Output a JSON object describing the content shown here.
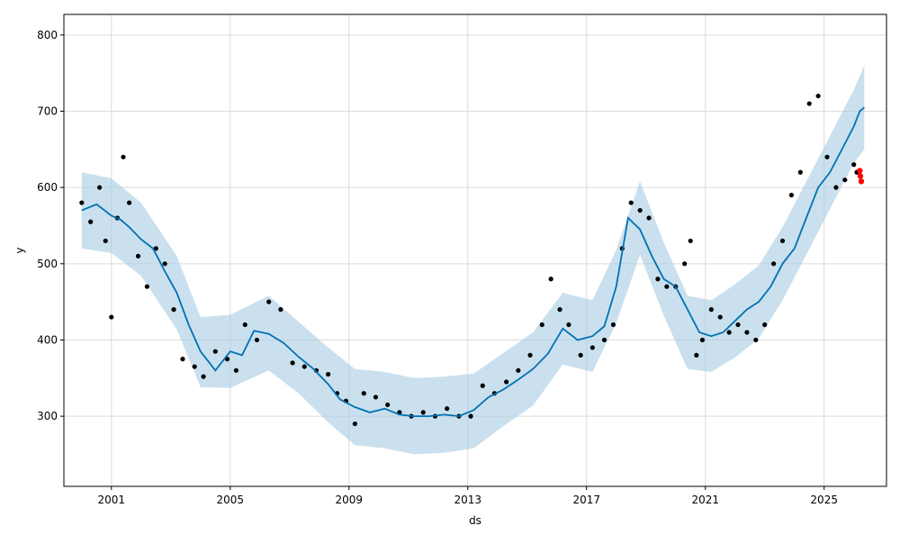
{
  "chart_data": {
    "type": "line",
    "title": "",
    "xlabel": "ds",
    "ylabel": "y",
    "xlim": [
      1999.4,
      2027.1
    ],
    "ylim": [
      208,
      827
    ],
    "x_ticks": [
      2001,
      2005,
      2009,
      2013,
      2017,
      2021,
      2025
    ],
    "x_tick_labels": [
      "2001",
      "2005",
      "2009",
      "2013",
      "2017",
      "2021",
      "2025"
    ],
    "y_ticks": [
      300,
      400,
      500,
      600,
      700,
      800
    ],
    "y_tick_labels": [
      "300",
      "400",
      "500",
      "600",
      "700",
      "800"
    ],
    "grid": true,
    "legend": "none",
    "colors": {
      "observed": "#000000",
      "forecast_line": "#0072B2",
      "uncertainty_band": "#a6cce3",
      "highlight_points": "#ff0000"
    },
    "series": [
      {
        "role": "forecast-yhat",
        "x": [
          2000.0,
          2000.5,
          2001.0,
          2001.3,
          2001.6,
          2002.0,
          2002.4,
          2002.8,
          2003.2,
          2003.6,
          2004.0,
          2004.5,
          2005.0,
          2005.4,
          2005.8,
          2006.3,
          2006.8,
          2007.3,
          2007.8,
          2008.3,
          2008.7,
          2009.2,
          2009.7,
          2010.2,
          2010.7,
          2011.2,
          2011.7,
          2012.2,
          2012.7,
          2013.2,
          2013.7,
          2014.2,
          2014.7,
          2015.2,
          2015.7,
          2016.2,
          2016.7,
          2017.2,
          2017.6,
          2018.0,
          2018.4,
          2018.8,
          2019.2,
          2019.6,
          2020.0,
          2020.4,
          2020.8,
          2021.2,
          2021.6,
          2022.0,
          2022.4,
          2022.8,
          2023.2,
          2023.6,
          2024.0,
          2024.4,
          2024.8,
          2025.2,
          2025.6,
          2026.0,
          2026.2,
          2026.35
        ],
        "y": [
          570,
          578,
          563,
          558,
          548,
          532,
          520,
          490,
          462,
          420,
          385,
          360,
          385,
          380,
          412,
          408,
          396,
          378,
          362,
          342,
          322,
          312,
          305,
          310,
          302,
          300,
          300,
          302,
          300,
          308,
          325,
          335,
          348,
          362,
          382,
          415,
          400,
          405,
          418,
          470,
          560,
          545,
          510,
          480,
          470,
          440,
          410,
          405,
          410,
          425,
          440,
          450,
          470,
          500,
          520,
          560,
          600,
          620,
          650,
          680,
          700,
          705
        ]
      },
      {
        "role": "uncertainty-upper",
        "x": [
          2000.0,
          2001.0,
          2002.0,
          2003.2,
          2004.0,
          2005.0,
          2006.3,
          2007.3,
          2008.3,
          2009.2,
          2010.2,
          2011.2,
          2012.2,
          2013.2,
          2014.2,
          2015.2,
          2016.2,
          2017.2,
          2018.0,
          2018.8,
          2019.6,
          2020.4,
          2021.2,
          2022.0,
          2022.8,
          2023.6,
          2024.4,
          2025.2,
          2026.0,
          2026.35
        ],
        "y": [
          620,
          612,
          580,
          510,
          430,
          433,
          458,
          424,
          390,
          362,
          358,
          350,
          352,
          356,
          383,
          410,
          462,
          452,
          518,
          608,
          528,
          458,
          452,
          473,
          498,
          548,
          608,
          668,
          728,
          760
        ]
      },
      {
        "role": "uncertainty-lower",
        "x": [
          2000.0,
          2001.0,
          2002.0,
          2003.2,
          2004.0,
          2005.0,
          2006.3,
          2007.3,
          2008.3,
          2009.2,
          2010.2,
          2011.2,
          2012.2,
          2013.2,
          2014.2,
          2015.2,
          2016.2,
          2017.2,
          2018.0,
          2018.8,
          2019.6,
          2020.4,
          2021.2,
          2022.0,
          2022.8,
          2023.6,
          2024.4,
          2025.2,
          2026.0,
          2026.35
        ],
        "y": [
          520,
          514,
          484,
          414,
          338,
          337,
          360,
          330,
          292,
          262,
          258,
          250,
          252,
          258,
          287,
          314,
          368,
          358,
          422,
          512,
          432,
          362,
          358,
          377,
          402,
          452,
          512,
          572,
          632,
          650
        ]
      },
      {
        "role": "observed-points",
        "x": [
          2000.0,
          2000.3,
          2000.6,
          2000.8,
          2001.0,
          2001.2,
          2001.4,
          2001.6,
          2001.9,
          2002.2,
          2002.5,
          2002.8,
          2003.1,
          2003.4,
          2003.8,
          2004.1,
          2004.5,
          2004.9,
          2005.2,
          2005.5,
          2005.9,
          2006.3,
          2006.7,
          2007.1,
          2007.5,
          2007.9,
          2008.3,
          2008.6,
          2008.9,
          2009.2,
          2009.5,
          2009.9,
          2010.3,
          2010.7,
          2011.1,
          2011.5,
          2011.9,
          2012.3,
          2012.7,
          2013.1,
          2013.5,
          2013.9,
          2014.3,
          2014.7,
          2015.1,
          2015.5,
          2015.8,
          2016.1,
          2016.4,
          2016.8,
          2017.2,
          2017.6,
          2017.9,
          2018.2,
          2018.5,
          2018.8,
          2019.1,
          2019.4,
          2019.7,
          2020.0,
          2020.3,
          2020.5,
          2020.7,
          2020.9,
          2021.2,
          2021.5,
          2021.8,
          2022.1,
          2022.4,
          2022.7,
          2023.0,
          2023.3,
          2023.6,
          2023.9,
          2024.2,
          2024.5,
          2024.8,
          2025.1,
          2025.4,
          2025.7,
          2026.0,
          2026.1
        ],
        "y": [
          580,
          555,
          600,
          530,
          430,
          560,
          640,
          580,
          510,
          470,
          520,
          500,
          440,
          375,
          365,
          352,
          385,
          375,
          360,
          420,
          400,
          450,
          440,
          370,
          365,
          360,
          355,
          330,
          320,
          290,
          330,
          325,
          315,
          305,
          300,
          305,
          300,
          310,
          300,
          300,
          340,
          330,
          345,
          360,
          380,
          420,
          480,
          440,
          420,
          380,
          390,
          400,
          420,
          520,
          580,
          570,
          560,
          480,
          470,
          470,
          500,
          530,
          380,
          400,
          440,
          430,
          410,
          420,
          410,
          400,
          420,
          500,
          530,
          590,
          620,
          710,
          720,
          640,
          600,
          610,
          630,
          620
        ],
        "gaps": "continuous dense daily observations"
      },
      {
        "role": "highlight-points",
        "x": [
          2026.2,
          2026.22,
          2026.25
        ],
        "y": [
          622,
          615,
          608
        ]
      }
    ]
  }
}
